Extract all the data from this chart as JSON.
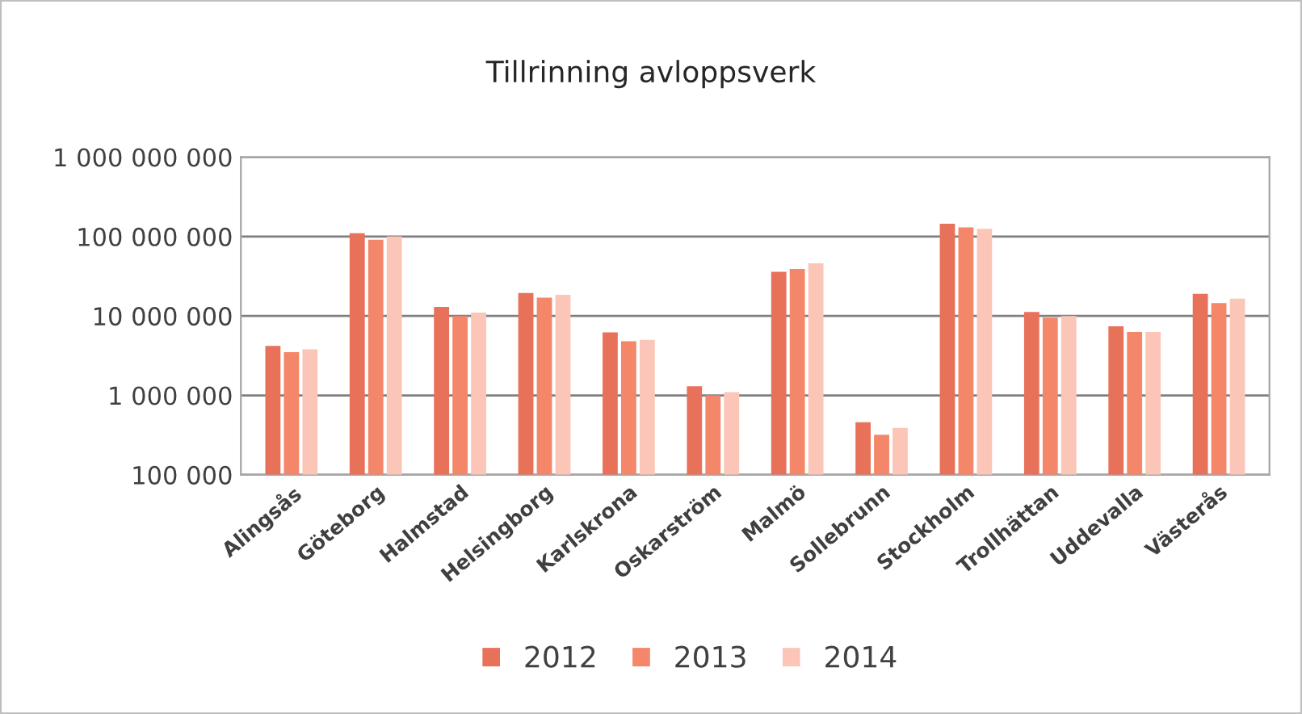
{
  "chart_data": {
    "type": "bar",
    "title": "Tillrinning avloppsverk",
    "categories": [
      "Alingsås",
      "Göteborg",
      "Halmstad",
      "Helsingborg",
      "Karlskrona",
      "Oskarström",
      "Malmö",
      "Sollebrunn",
      "Stockholm",
      "Trollhättan",
      "Uddevalla",
      "Västerås"
    ],
    "series": [
      {
        "name": "2012",
        "color": "#e8715a",
        "values": [
          4200000,
          110000000,
          13000000,
          19500000,
          6200000,
          1300000,
          36000000,
          460000,
          145000000,
          11200000,
          7400000,
          19000000
        ]
      },
      {
        "name": "2013",
        "color": "#f4866a",
        "values": [
          3500000,
          91000000,
          10000000,
          17000000,
          4800000,
          1000000,
          39000000,
          320000,
          130000000,
          9500000,
          6300000,
          14500000
        ]
      },
      {
        "name": "2014",
        "color": "#fbc6b8",
        "values": [
          3800000,
          100000000,
          11000000,
          18500000,
          5000000,
          1100000,
          46000000,
          390000,
          125000000,
          10000000,
          6300000,
          16500000
        ]
      }
    ],
    "log": true,
    "ylim": [
      100000,
      1000000000
    ],
    "yticks": [
      {
        "value": 100000,
        "label": "100 000"
      },
      {
        "value": 1000000,
        "label": "1 000 000"
      },
      {
        "value": 10000000,
        "label": "10 000 000"
      },
      {
        "value": 100000000,
        "label": "100 000 000"
      },
      {
        "value": 1000000000,
        "label": "1 000 000 000"
      }
    ],
    "grid": "y",
    "legend": "bottom"
  }
}
